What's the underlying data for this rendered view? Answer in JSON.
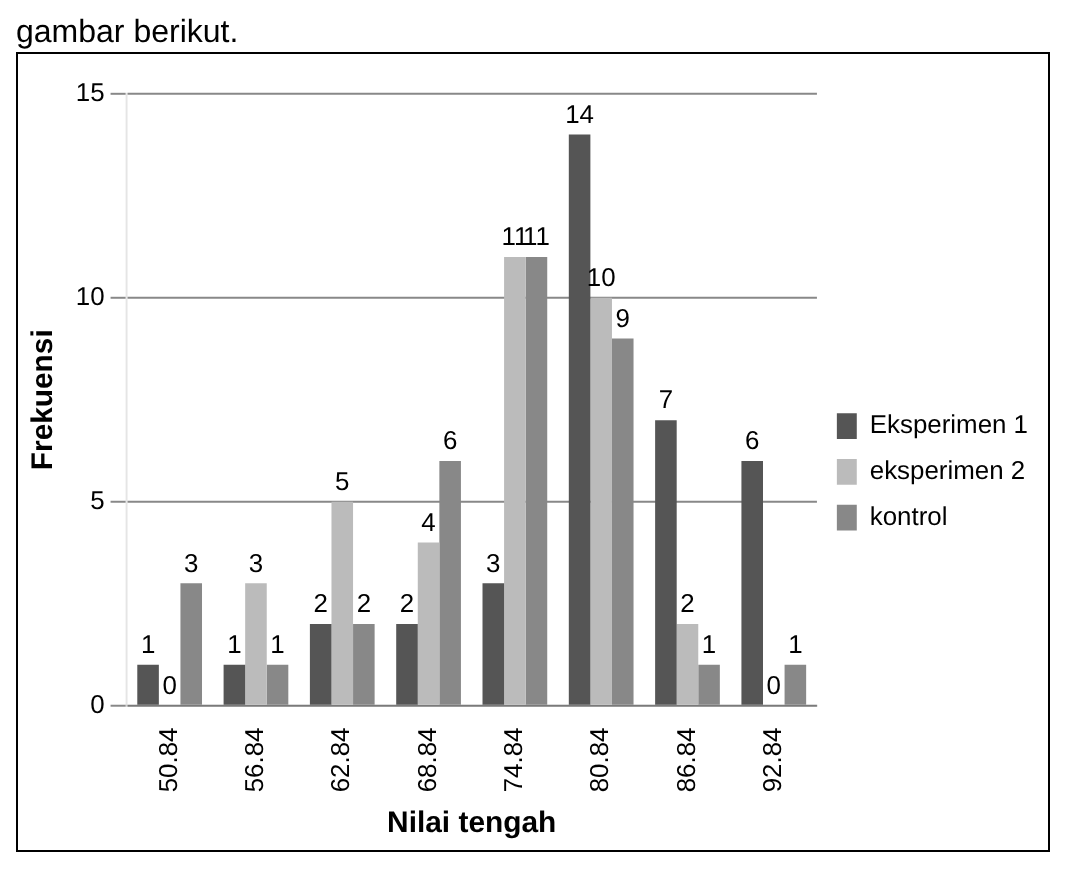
{
  "chart_data": {
    "type": "bar",
    "annotations": [
      "gambar berikut."
    ],
    "xlabel": "Nilai tengah",
    "ylabel": "Frekuensi",
    "categories": [
      "50.84",
      "56.84",
      "62.84",
      "68.84",
      "74.84",
      "80.84",
      "86.84",
      "92.84"
    ],
    "series": [
      {
        "name": "Eksperimen 1",
        "color": "#555555",
        "values": [
          1,
          1,
          2,
          2,
          3,
          14,
          7,
          6
        ]
      },
      {
        "name": "eksperimen 2",
        "color": "#bbbbbb",
        "values": [
          0,
          3,
          5,
          4,
          11,
          10,
          2,
          0
        ]
      },
      {
        "name": "kontrol",
        "color": "#888888",
        "values": [
          3,
          1,
          2,
          6,
          11,
          9,
          1,
          1
        ]
      }
    ],
    "ylim": [
      0,
      15
    ],
    "yticks": [
      0,
      5,
      10,
      15
    ],
    "grid": "y",
    "legend": "right",
    "data_labels": true
  }
}
